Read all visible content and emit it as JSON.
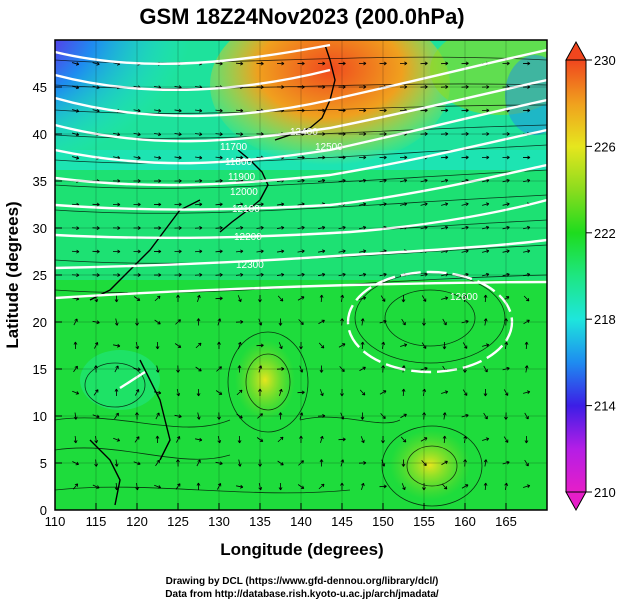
{
  "title": "GSM 18Z24Nov2023 (200.0hPa)",
  "x_axis": {
    "label": "Longitude (degrees)",
    "ticks": [
      "110",
      "115",
      "120",
      "125",
      "130",
      "135",
      "140",
      "145",
      "150",
      "155",
      "160",
      "165"
    ]
  },
  "y_axis": {
    "label": "Latitude  (degrees)",
    "ticks": [
      "0",
      "5",
      "10",
      "15",
      "20",
      "25",
      "30",
      "35",
      "40",
      "45"
    ]
  },
  "colorbar": {
    "ticks": [
      "210",
      "214",
      "218",
      "222",
      "226",
      "230"
    ],
    "min": 210,
    "max": 230,
    "colors": [
      "#e61ec8",
      "#b41ee6",
      "#3c1ee6",
      "#1e8cf0",
      "#1ee6dc",
      "#1ee682",
      "#1edc1e",
      "#8cdc1e",
      "#e6e61e",
      "#f0a01e",
      "#f0461e"
    ]
  },
  "contour_labels": [
    "11700",
    "11800",
    "11900",
    "12000",
    "12100",
    "12200",
    "12300",
    "12400",
    "12500",
    "12600"
  ],
  "credits": {
    "line1": "Drawing by DCL (https://www.gfd-dennou.org/library/dcl/)",
    "line2": "Data from http://database.rish.kyoto-u.ac.jp/arch/jmadata/"
  },
  "map": {
    "lon_range": [
      110,
      170
    ],
    "lat_range": [
      0,
      50
    ],
    "field": "temperature (K) with streamlines and geopotential height contours"
  }
}
